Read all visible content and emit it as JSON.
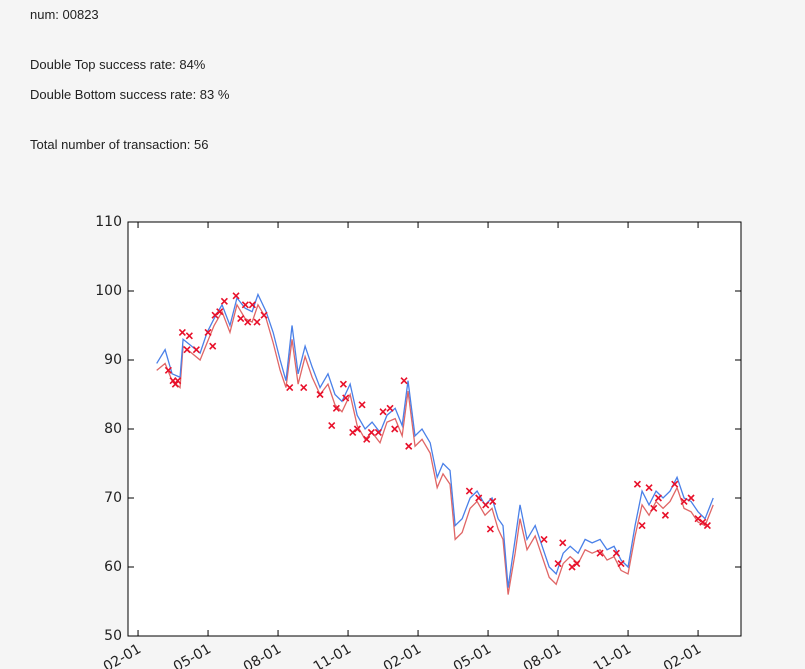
{
  "texts": {
    "num": "num: 00823",
    "double_top": "Double Top success rate: 84%",
    "double_bottom": "Double Bottom success rate: 83 %",
    "transactions": "Total number of transaction: 56"
  },
  "chart_data": {
    "type": "line",
    "xlim": [
      -0.43,
      25.84
    ],
    "ylim": [
      50,
      110
    ],
    "xticks": [
      {
        "value": 0,
        "label": "02-01"
      },
      {
        "value": 3,
        "label": "05-01"
      },
      {
        "value": 6,
        "label": "08-01"
      },
      {
        "value": 9,
        "label": "11-01"
      },
      {
        "value": 12,
        "label": "02-01"
      },
      {
        "value": 15,
        "label": "05-01"
      },
      {
        "value": 18,
        "label": "08-01"
      },
      {
        "value": 21,
        "label": "11-01"
      },
      {
        "value": 24,
        "label": "02-01"
      }
    ],
    "yticks": [
      50,
      60,
      70,
      80,
      90,
      100,
      110
    ],
    "x": [
      0.8,
      1.16,
      1.46,
      1.8,
      1.93,
      2.3,
      2.66,
      2.96,
      3.26,
      3.6,
      3.94,
      4.24,
      4.59,
      4.89,
      5.14,
      5.49,
      5.79,
      6.09,
      6.34,
      6.6,
      6.86,
      7.16,
      7.46,
      7.8,
      8.14,
      8.44,
      8.74,
      9.09,
      9.39,
      9.73,
      10.03,
      10.37,
      10.67,
      11.02,
      11.32,
      11.57,
      11.87,
      12.17,
      12.52,
      12.82,
      13.07,
      13.37,
      13.59,
      13.89,
      14.23,
      14.53,
      14.87,
      15.17,
      15.43,
      15.64,
      15.86,
      16.16,
      16.37,
      16.67,
      17.02,
      17.32,
      17.62,
      17.92,
      18.22,
      18.52,
      18.86,
      19.16,
      19.46,
      19.8,
      20.1,
      20.4,
      20.7,
      21.0,
      21.3,
      21.6,
      21.9,
      22.2,
      22.5,
      22.8,
      23.1,
      23.4,
      23.7,
      24.0,
      24.3,
      24.65
    ],
    "series": [
      {
        "color": "#e06666",
        "values": [
          88.5,
          89.5,
          87,
          86,
          92,
          91,
          90,
          92.5,
          95,
          97,
          94,
          98,
          96,
          95.5,
          98,
          96,
          92.5,
          88.5,
          86,
          93,
          86.5,
          90.5,
          87.5,
          85,
          86.5,
          83.5,
          82.5,
          85,
          80.5,
          78.5,
          79.5,
          78,
          81,
          81.5,
          79,
          85.5,
          77.5,
          78.5,
          76.5,
          71.5,
          73.5,
          72,
          64,
          65,
          68.5,
          69.5,
          67.5,
          68.5,
          65.5,
          64,
          56,
          62,
          67,
          62.5,
          64.5,
          61.5,
          58.5,
          57.5,
          60.5,
          61.5,
          60.5,
          62.5,
          62,
          62.5,
          61,
          61.5,
          59.5,
          59,
          64.5,
          69,
          67.5,
          69.5,
          68.5,
          69.5,
          71.5,
          68.5,
          68,
          66.5,
          66,
          69
        ]
      },
      {
        "color": "#4a80e8",
        "values": [
          89.5,
          91.5,
          88,
          87.5,
          93,
          92,
          91,
          94,
          96,
          98,
          95,
          99,
          97.5,
          97,
          99.5,
          97,
          94,
          90,
          87,
          95,
          88,
          92,
          89,
          86,
          88,
          85,
          84,
          86.5,
          82,
          80,
          81,
          79.5,
          82,
          83,
          80.5,
          87,
          79,
          80,
          78,
          73,
          75,
          74,
          66,
          67,
          70,
          71,
          69,
          70,
          67,
          66,
          57,
          64,
          69,
          64,
          66,
          63,
          60,
          59,
          62,
          63,
          62,
          64,
          63.5,
          64,
          62.5,
          63,
          61,
          60,
          66,
          71,
          69,
          71,
          70,
          71,
          73,
          70,
          69.5,
          68,
          67,
          70
        ]
      }
    ],
    "markers": {
      "color": "#e8102a",
      "x": [
        1.3,
        1.5,
        1.6,
        1.7,
        1.9,
        2.1,
        2.2,
        2.5,
        3.0,
        3.2,
        3.3,
        3.5,
        3.7,
        4.2,
        4.4,
        4.6,
        4.7,
        4.9,
        5.1,
        5.4,
        6.5,
        7.1,
        7.8,
        8.3,
        8.5,
        8.8,
        8.9,
        9.2,
        9.4,
        9.6,
        9.8,
        10.0,
        10.3,
        10.5,
        10.8,
        11.0,
        11.4,
        11.6,
        14.2,
        14.6,
        14.9,
        15.1,
        15.2,
        17.4,
        18.0,
        18.2,
        18.6,
        18.8,
        19.8,
        20.5,
        20.7,
        21.4,
        21.6,
        21.9,
        22.1,
        22.3,
        22.6,
        23.0,
        23.4,
        23.7,
        24.0,
        24.2,
        24.4
      ],
      "y": [
        88.5,
        87,
        86.5,
        87,
        94,
        91.5,
        93.5,
        91.5,
        94,
        92,
        96.5,
        97,
        98.5,
        99.3,
        96,
        98,
        95.5,
        98,
        95.5,
        96.5,
        86,
        86,
        85,
        80.5,
        83,
        86.5,
        84.5,
        79.5,
        80,
        83.5,
        78.5,
        79.5,
        79.5,
        82.5,
        83,
        80,
        87,
        77.5,
        71,
        70,
        69,
        65.5,
        69.5,
        64,
        60.5,
        63.5,
        60,
        60.5,
        62,
        62,
        60.5,
        72,
        66,
        71.5,
        68.5,
        70,
        67.5,
        72,
        69.5,
        70,
        67,
        66.5,
        66
      ]
    }
  }
}
